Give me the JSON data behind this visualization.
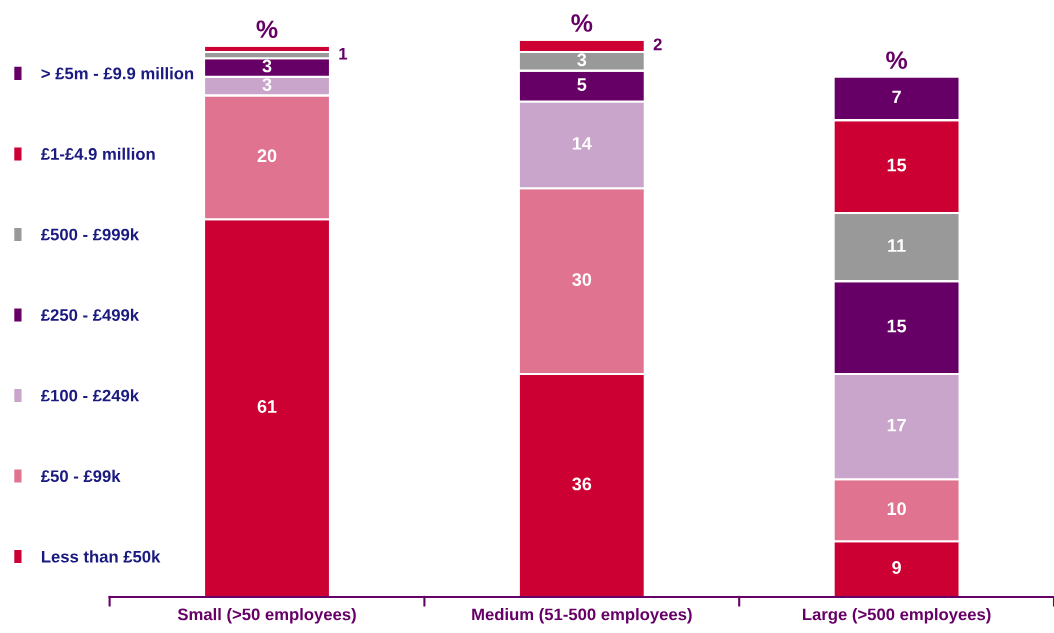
{
  "chart_data": {
    "type": "bar",
    "stacked": true,
    "legend": "left",
    "categories": [
      "Small (>50 employees)",
      "Medium (51-500 employees)",
      "Large (>500 employees)"
    ],
    "annotations": [
      "%",
      "%",
      "%"
    ],
    "series": [
      {
        "name": "Less than £50k",
        "color": "#cc0033",
        "values": [
          61,
          36,
          9
        ],
        "value_labels": [
          "61",
          "36",
          "9"
        ]
      },
      {
        "name": "£50 - £99k",
        "color": "#e07390",
        "values": [
          20,
          30,
          10
        ],
        "value_labels": [
          "20",
          "30",
          "10"
        ]
      },
      {
        "name": "£100 - £249k",
        "color": "#c9a5cb",
        "values": [
          3,
          14,
          17
        ],
        "value_labels": [
          "3",
          "14",
          "17"
        ]
      },
      {
        "name": "£250 - £499k",
        "color": "#660066",
        "values": [
          3,
          5,
          15
        ],
        "value_labels": [
          "3",
          "5",
          "15"
        ]
      },
      {
        "name": "£500 - £999k",
        "color": "#999999",
        "values": [
          1,
          3,
          11
        ],
        "value_labels": [
          "1",
          "3",
          "11"
        ]
      },
      {
        "name": "£1-£4.9 million",
        "color": "#cc0033",
        "values": [
          1,
          2,
          15
        ],
        "value_labels": [
          null,
          "2",
          "15"
        ]
      },
      {
        "name": "> £5m - £9.9 million",
        "color": "#660066",
        "values": [
          null,
          null,
          7
        ],
        "value_labels": [
          null,
          null,
          "7"
        ]
      }
    ]
  }
}
